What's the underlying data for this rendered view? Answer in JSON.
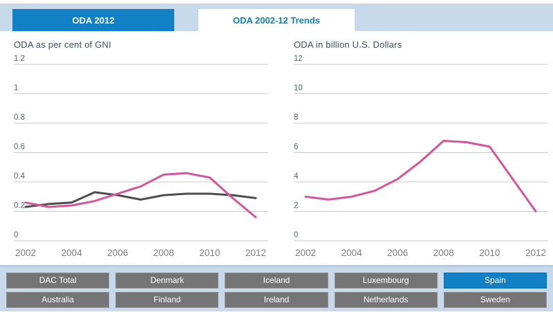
{
  "tabs": [
    {
      "label": "ODA 2012",
      "active": false
    },
    {
      "label": "ODA 2002-12 Trends",
      "active": true
    }
  ],
  "colors": {
    "accent_blue": "#1180c5",
    "pink_line": "#d6549c",
    "dark_line": "#4d4d4d",
    "button_gray": "#757575",
    "band_blue": "#c7daec",
    "gridline": "#cacaca"
  },
  "chart_data": [
    {
      "type": "line",
      "title": "ODA as per cent of GNI",
      "x": [
        2002,
        2003,
        2004,
        2005,
        2006,
        2007,
        2008,
        2009,
        2010,
        2011,
        2012
      ],
      "xticks": [
        2002,
        2004,
        2006,
        2008,
        2010,
        2012
      ],
      "ylim": [
        0,
        1.2
      ],
      "yticks": [
        {
          "label": "1.2",
          "value": 1.2
        },
        {
          "label": "1",
          "value": 1.0
        },
        {
          "label": "0.8",
          "value": 0.8
        },
        {
          "label": "0.6",
          "value": 0.6
        },
        {
          "label": "0.4",
          "value": 0.4
        },
        {
          "label": "0.2",
          "value": 0.2
        },
        {
          "label": "0",
          "value": 0
        }
      ],
      "grid": true,
      "legend": "none",
      "series": [
        {
          "name": "DAC Total",
          "color": "#4d4d4d",
          "values": [
            0.23,
            0.25,
            0.26,
            0.33,
            0.31,
            0.28,
            0.31,
            0.32,
            0.32,
            0.31,
            0.29
          ]
        },
        {
          "name": "Spain",
          "color": "#d6549c",
          "values": [
            0.26,
            0.23,
            0.24,
            0.27,
            0.32,
            0.37,
            0.45,
            0.46,
            0.43,
            0.29,
            0.16
          ]
        }
      ]
    },
    {
      "type": "line",
      "title": "ODA in billion U.S. Dollars",
      "x": [
        2002,
        2003,
        2004,
        2005,
        2006,
        2007,
        2008,
        2009,
        2010,
        2011,
        2012
      ],
      "xticks": [
        2002,
        2004,
        2006,
        2008,
        2010,
        2012
      ],
      "ylim": [
        0,
        12
      ],
      "yticks": [
        {
          "label": "12",
          "value": 12
        },
        {
          "label": "10",
          "value": 10
        },
        {
          "label": "8",
          "value": 8
        },
        {
          "label": "6",
          "value": 6
        },
        {
          "label": "4",
          "value": 4
        },
        {
          "label": "2",
          "value": 2
        },
        {
          "label": "0",
          "value": 0
        }
      ],
      "grid": true,
      "legend": "none",
      "series": [
        {
          "name": "Spain",
          "color": "#d6549c",
          "values": [
            3.0,
            2.8,
            3.0,
            3.4,
            4.2,
            5.4,
            6.8,
            6.7,
            6.4,
            4.2,
            2.0
          ]
        }
      ]
    }
  ],
  "footer": {
    "countries": [
      {
        "label": "DAC Total",
        "selected": false
      },
      {
        "label": "Denmark",
        "selected": false
      },
      {
        "label": "Iceland",
        "selected": false
      },
      {
        "label": "Luxembourg",
        "selected": false
      },
      {
        "label": "Spain",
        "selected": true
      },
      {
        "label": "Australia",
        "selected": false
      },
      {
        "label": "Finland",
        "selected": false
      },
      {
        "label": "Ireland",
        "selected": false
      },
      {
        "label": "Netherlands",
        "selected": false
      },
      {
        "label": "Sweden",
        "selected": false
      }
    ]
  }
}
